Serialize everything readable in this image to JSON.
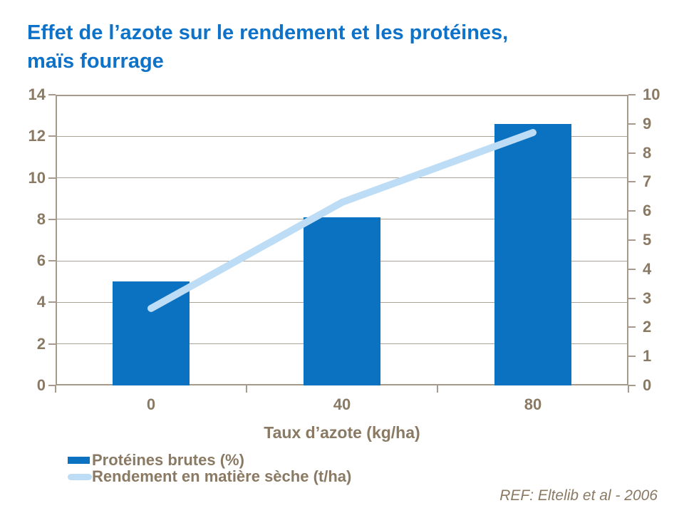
{
  "header": {
    "title_line1": "Effet de l’azote sur le rendement et les protéines,",
    "title_line2": "maïs fourrage"
  },
  "footer": {
    "reference": "REF:  Eltelib et al - 2006"
  },
  "colors": {
    "background": "#FFFFFF",
    "title": "#0E73C8",
    "bar": "#0A72C0",
    "line": "#BDDCF5",
    "text": "#8A7963",
    "axis": "#A59A8C",
    "grid": "#ADA396"
  },
  "chart_data": {
    "type": "bar",
    "categories": [
      "0",
      "40",
      "80"
    ],
    "series": [
      {
        "name": "Protéines brutes (%)",
        "type": "bar",
        "axis": "left",
        "color": "#0A72C0",
        "values": [
          5.0,
          8.1,
          12.6
        ]
      },
      {
        "name": "Rendement en matière sèche (t/ha)",
        "type": "line",
        "axis": "right",
        "color": "#BDDCF5",
        "values": [
          2.65,
          6.3,
          8.7
        ]
      }
    ],
    "title": "Effet de l’azote sur le rendement et les protéines, maïs fourrage",
    "xlabel": "Taux d’azote (kg/ha)",
    "left_axis": {
      "min": 0,
      "max": 14,
      "step": 2
    },
    "right_axis": {
      "min": 0,
      "max": 10,
      "step": 1
    },
    "grid": true,
    "legend_position": "bottom-left"
  }
}
